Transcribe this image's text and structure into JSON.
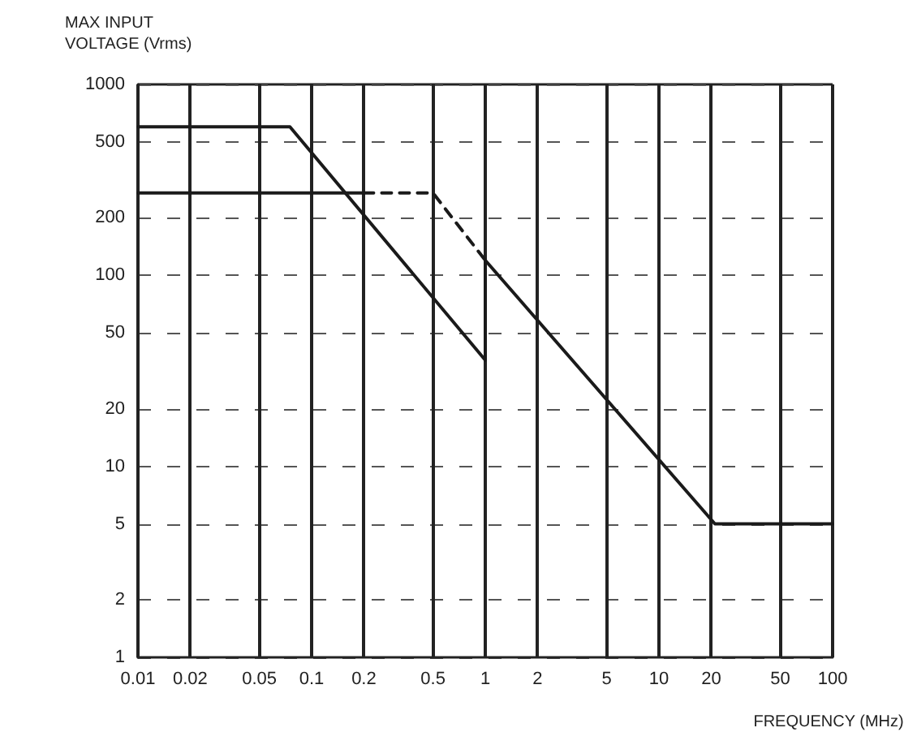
{
  "chart_data": {
    "type": "line",
    "ylabel": "MAX INPUT\nVOLTAGE (Vrms)",
    "xlabel": "FREQUENCY (MHz)",
    "log": "xy",
    "grid": true,
    "xlim": [
      0.01,
      100
    ],
    "xticks": [
      0.01,
      0.02,
      0.05,
      0.1,
      0.2,
      0.5,
      1,
      2,
      5,
      10,
      20,
      50,
      100
    ],
    "ylim": [
      1,
      1000
    ],
    "yticks": [
      1,
      2,
      5,
      10,
      20,
      50,
      100,
      200,
      500,
      1000
    ],
    "series": [
      {
        "color": "#1a1a1a",
        "line_style": "solid",
        "x": [
          0.01,
          0.075,
          1,
          1,
          21,
          100
        ],
        "values": [
          600,
          600,
          36,
          120,
          5,
          5
        ]
      },
      {
        "color": "#1a1a1a",
        "line_style": "solid",
        "x": [
          0.01,
          0.2
        ],
        "values": [
          270,
          270
        ]
      },
      {
        "color": "#1a1a1a",
        "line_style": "dashed",
        "x": [
          0.2,
          0.5,
          1
        ],
        "values": [
          270,
          270,
          120
        ]
      }
    ]
  }
}
